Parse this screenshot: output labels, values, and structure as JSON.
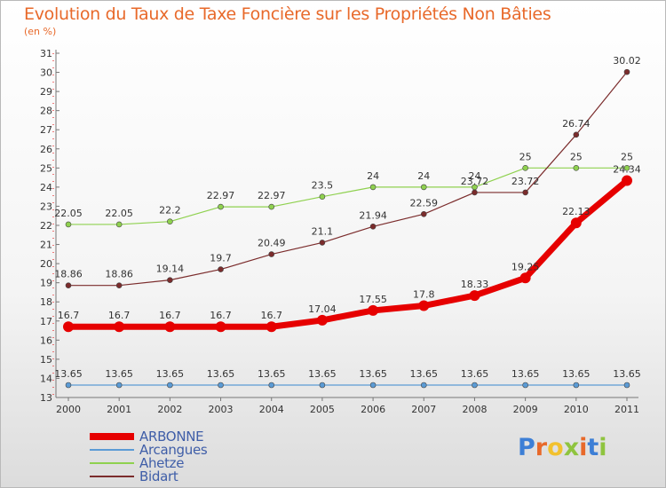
{
  "header": {
    "title": "Evolution du Taux de Taxe Foncière sur les Propriétés Non Bâties",
    "unit": "(en %)"
  },
  "chart_data": {
    "type": "line",
    "title": "Evolution du Taux de Taxe Foncière sur les Propriétés Non Bâties",
    "ylabel": "(en %)",
    "xlabel": "",
    "x": [
      "2000",
      "2001",
      "2002",
      "2003",
      "2004",
      "2005",
      "2006",
      "2007",
      "2008",
      "2009",
      "2010",
      "2011"
    ],
    "ylim": [
      13,
      31
    ],
    "yticks": [
      13,
      14,
      15,
      16,
      17,
      18,
      19,
      20,
      21,
      22,
      23,
      24,
      25,
      26,
      27,
      28,
      29,
      30,
      31
    ],
    "series": [
      {
        "name": "ARBONNE",
        "color": "#e60000",
        "emphasis": true,
        "values": [
          16.7,
          16.7,
          16.7,
          16.7,
          16.7,
          17.04,
          17.55,
          17.8,
          18.33,
          19.25,
          22.13,
          24.34
        ],
        "labels": [
          "16.7",
          "16.7",
          "16.7",
          "16.7",
          "16.7",
          "17.04",
          "17.55",
          "17.8",
          "18.33",
          "19.25",
          "22.13",
          "24.34"
        ]
      },
      {
        "name": "Arcangues",
        "color": "#5b9bd5",
        "emphasis": false,
        "values": [
          13.65,
          13.65,
          13.65,
          13.65,
          13.65,
          13.65,
          13.65,
          13.65,
          13.65,
          13.65,
          13.65,
          13.65
        ],
        "labels": [
          "13.65",
          "13.65",
          "13.65",
          "13.65",
          "13.65",
          "13.65",
          "13.65",
          "13.65",
          "13.65",
          "13.65",
          "13.65",
          "13.65"
        ]
      },
      {
        "name": "Ahetze",
        "color": "#8fd14f",
        "emphasis": false,
        "values": [
          22.05,
          22.05,
          22.2,
          22.97,
          22.97,
          23.5,
          24,
          24,
          24,
          25,
          25,
          25
        ],
        "labels": [
          "22.05",
          "22.05",
          "22.2",
          "22.97",
          "22.97",
          "23.5",
          "24",
          "24",
          "24",
          "25",
          "25",
          "25"
        ]
      },
      {
        "name": "Bidart",
        "color": "#7b2c2c",
        "emphasis": false,
        "values": [
          18.86,
          18.86,
          19.14,
          19.7,
          20.49,
          21.1,
          21.94,
          22.59,
          23.72,
          23.72,
          26.74,
          30.02
        ],
        "labels": [
          "18.86",
          "18.86",
          "19.14",
          "19.7",
          "20.49",
          "21.1",
          "21.94",
          "22.59",
          "23.72",
          "23.72",
          "26.74",
          "30.02"
        ]
      }
    ],
    "legend_position": "bottom-left",
    "grid": false
  },
  "legend": {
    "items": [
      {
        "label": "ARBONNE",
        "color": "#e60000"
      },
      {
        "label": "Arcangues",
        "color": "#5b9bd5"
      },
      {
        "label": "Ahetze",
        "color": "#8fd14f"
      },
      {
        "label": "Bidart",
        "color": "#7b2c2c"
      }
    ]
  },
  "logo": {
    "text": "Proxiti",
    "colors": [
      "#3d7fd6",
      "#e8692a",
      "#f2c12e",
      "#8fc43f",
      "#e8692a",
      "#3d7fd6",
      "#8fc43f"
    ]
  }
}
